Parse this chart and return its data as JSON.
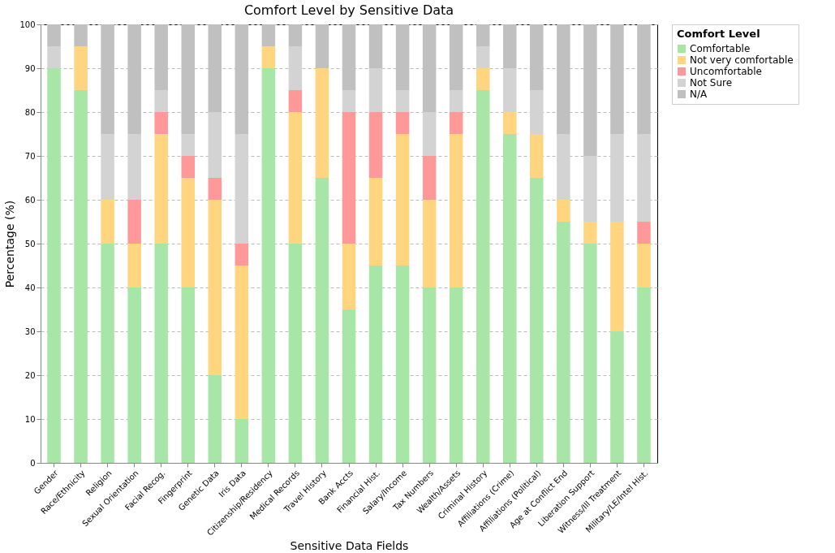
{
  "chart_data": {
    "type": "bar",
    "title": "Comfort Level by Sensitive Data",
    "xlabel": "Sensitive Data Fields",
    "ylabel": "Percentage (%)",
    "legend_title": "Comfort Level",
    "stacked": true,
    "legend": "top right",
    "grid": "y",
    "ylim": [
      0,
      100
    ],
    "yticks": [
      0,
      10,
      20,
      30,
      40,
      50,
      60,
      70,
      80,
      90,
      100
    ],
    "categories": [
      "Gender",
      "Race/Ethnicity",
      "Religion",
      "Sexual Orientation",
      "Facial Recog.",
      "Fingerprint",
      "Genetic Data",
      "Iris Data",
      "Citizenship/Residency",
      "Medical Records",
      "Travel History",
      "Bank Accts",
      "Financial Hist.",
      "Salary/Income",
      "Tax Numbers",
      "Wealth/Assets",
      "Criminal History",
      "Affiliations (Crime)",
      "Affiliations (Political)",
      "Age at Conflict End",
      "Liberation Support",
      "Witness/Ill Treatment",
      "Military/LE/Intel Hist."
    ],
    "series": [
      {
        "name": "Comfortable",
        "color": "#a8e6a8",
        "values": [
          90,
          85,
          50,
          40,
          50,
          40,
          20,
          10,
          90,
          50,
          65,
          35,
          45,
          45,
          40,
          40,
          85,
          75,
          65,
          55,
          50,
          30,
          40
        ]
      },
      {
        "name": "Not very comfortable",
        "color": "#ffd580",
        "values": [
          0,
          10,
          10,
          10,
          25,
          25,
          40,
          35,
          5,
          30,
          25,
          15,
          20,
          30,
          20,
          35,
          5,
          5,
          10,
          5,
          5,
          25,
          10
        ]
      },
      {
        "name": "Uncomfortable",
        "color": "#ff9999",
        "values": [
          0,
          0,
          0,
          10,
          5,
          5,
          5,
          5,
          0,
          5,
          0,
          30,
          15,
          5,
          10,
          5,
          0,
          0,
          0,
          0,
          0,
          0,
          5
        ]
      },
      {
        "name": "Not Sure",
        "color": "#d3d3d3",
        "values": [
          5,
          0,
          15,
          15,
          5,
          5,
          15,
          25,
          0,
          10,
          0,
          5,
          10,
          5,
          10,
          5,
          5,
          10,
          10,
          15,
          15,
          20,
          20
        ]
      },
      {
        "name": "N/A",
        "color": "#c0c0c0",
        "values": [
          5,
          5,
          25,
          25,
          15,
          25,
          20,
          25,
          5,
          5,
          10,
          15,
          10,
          15,
          20,
          15,
          5,
          10,
          15,
          25,
          30,
          25,
          25
        ]
      }
    ]
  }
}
